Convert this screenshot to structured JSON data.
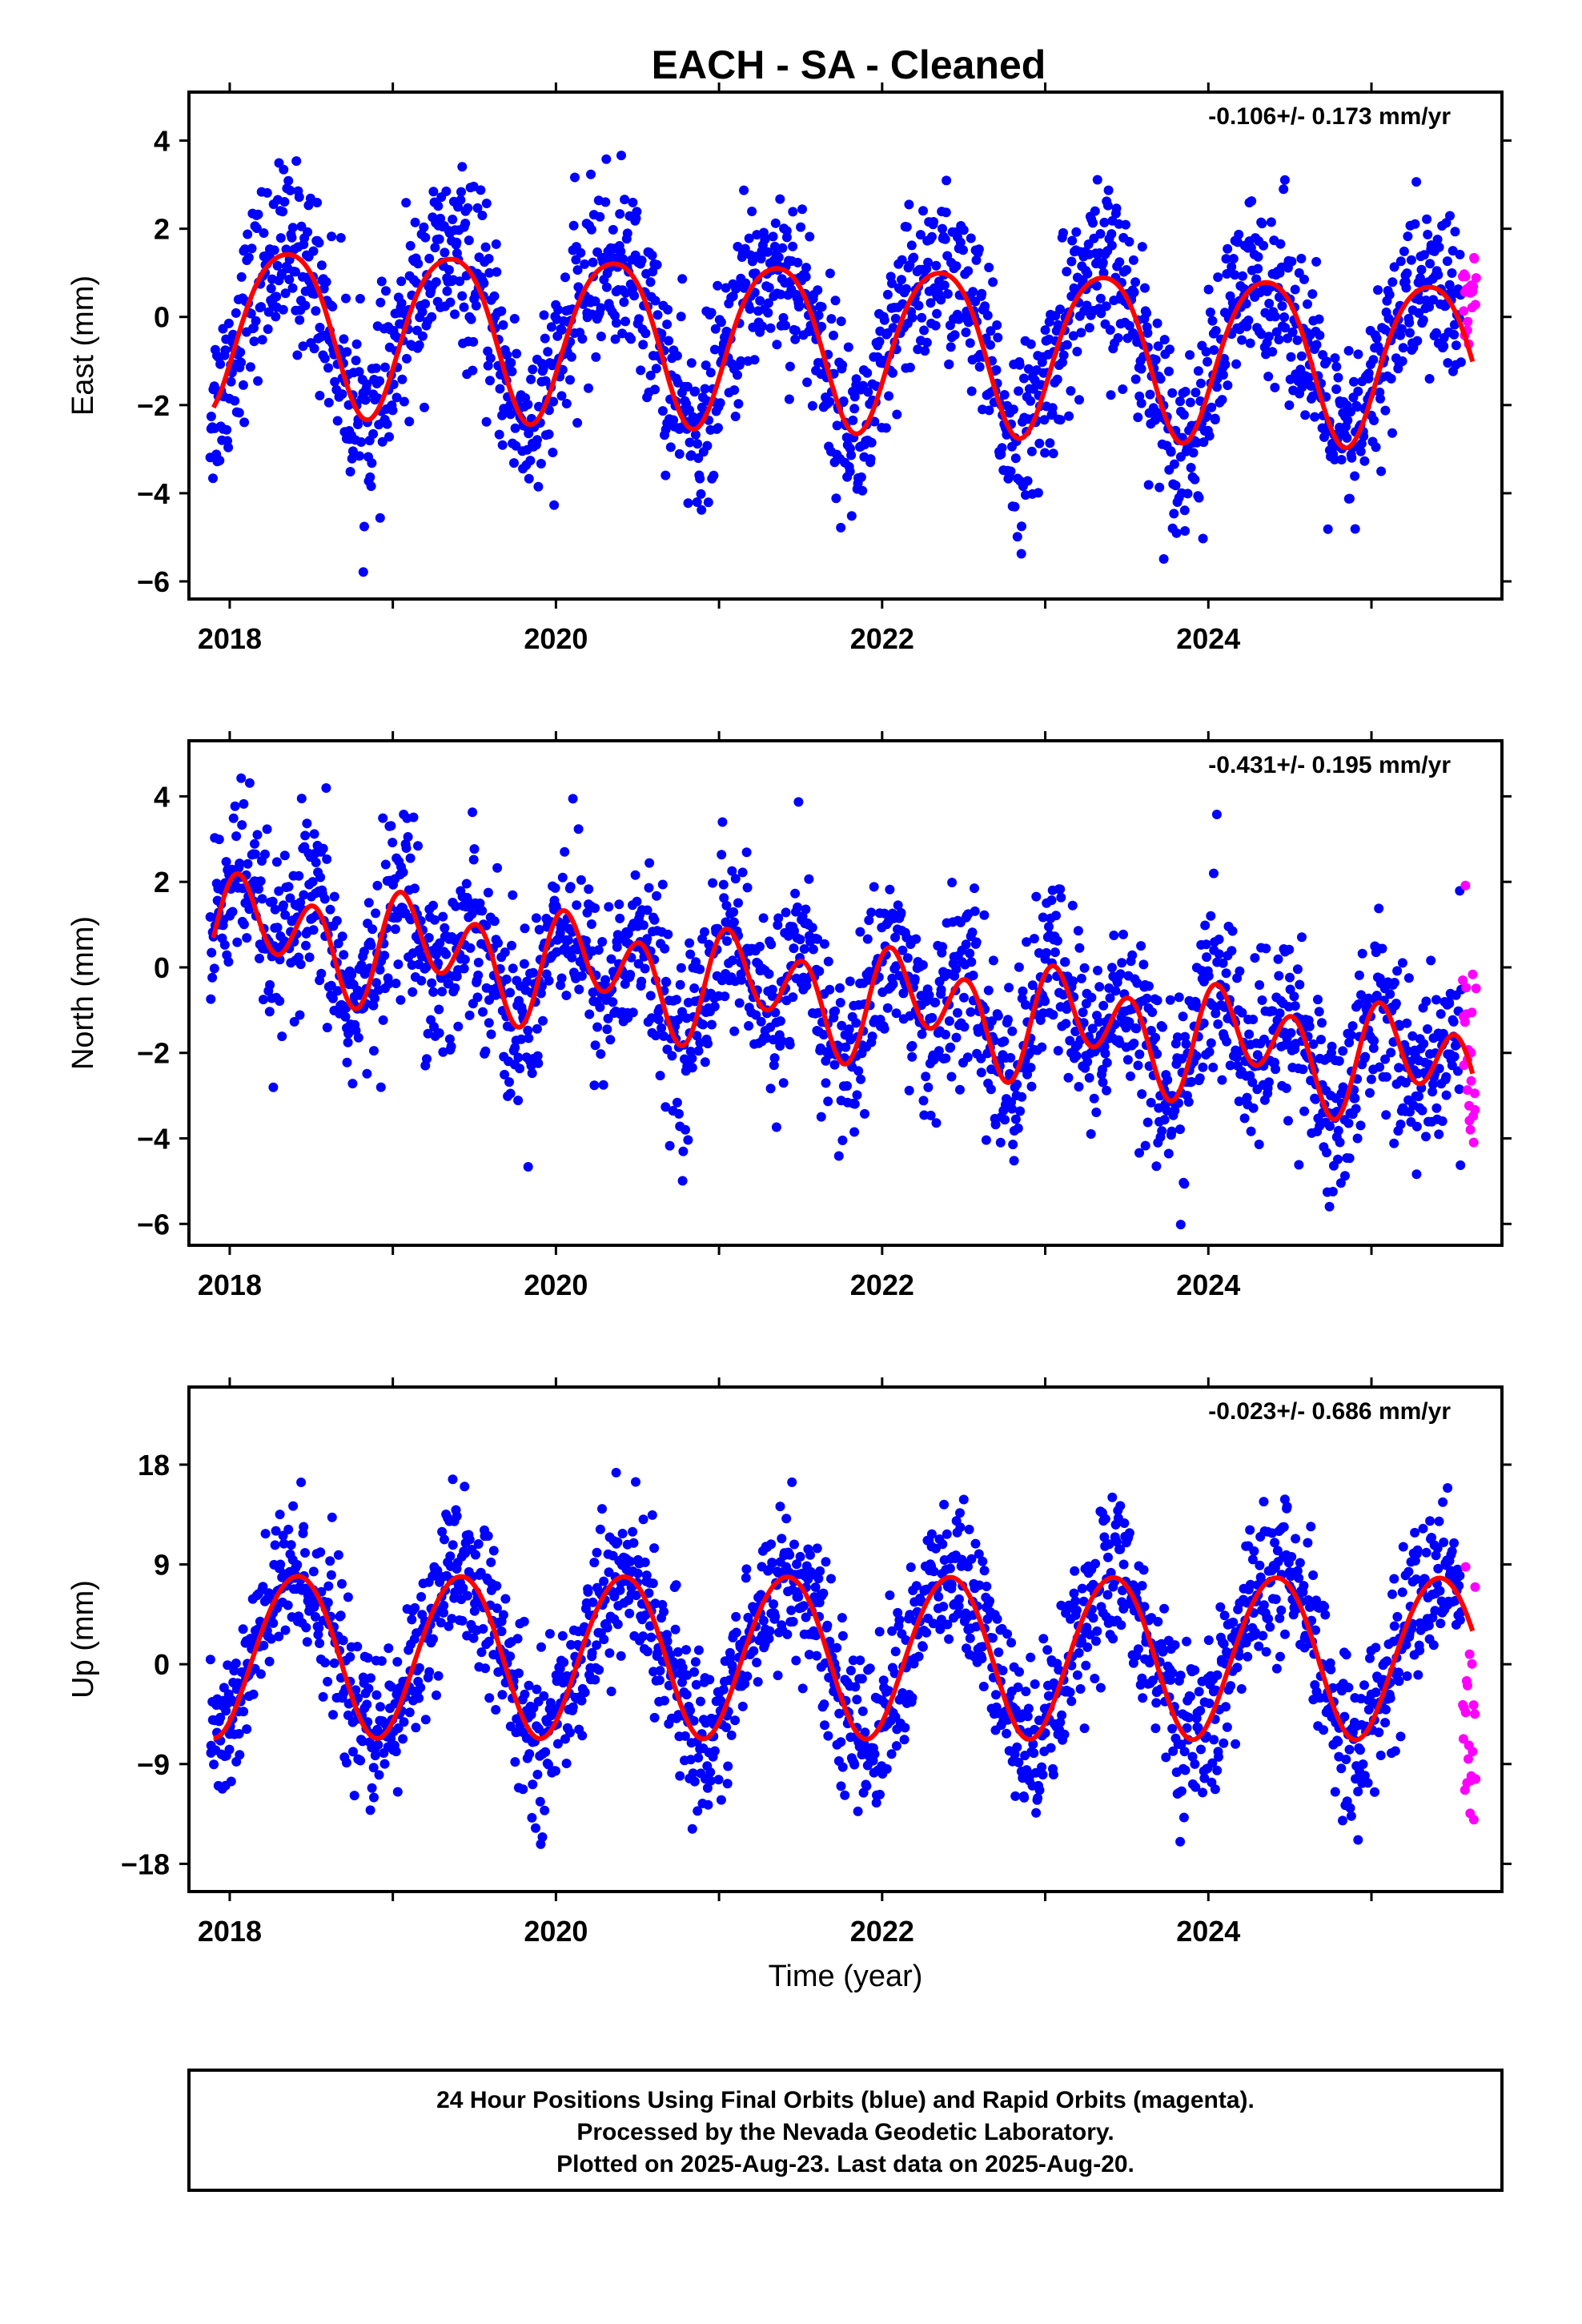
{
  "title": "EACH  - SA - Cleaned",
  "footer": {
    "line1": "24 Hour Positions Using Final Orbits (blue) and Rapid Orbits (magenta).",
    "line2": "Processed by the Nevada Geodetic Laboratory.",
    "line3": "Plotted on 2025-Aug-23. Last data on 2025-Aug-20."
  },
  "colors": {
    "final": "#0000ff",
    "rapid": "#ff00ff",
    "model": "#ff0000",
    "frame": "#000000"
  },
  "chart_data": [
    {
      "type": "scatter",
      "ylabel": "East (mm)",
      "xlabel": "",
      "rate": "-0.106+/- 0.173 mm/yr",
      "xlim": [
        2017.75,
        2025.8
      ],
      "ylim": [
        -6.4,
        5.1
      ],
      "xticks": [
        2018,
        2020,
        2022,
        2024
      ],
      "yticks": [
        4,
        2,
        0,
        -2,
        -4,
        -6
      ],
      "grid": false,
      "series": [
        {
          "name": "Final Orbits",
          "color": "#0000ff",
          "data_start": 2017.88,
          "data_end": 2025.55,
          "count": 1900,
          "offset": -0.15,
          "trend": -0.106,
          "annual_amp": 1.85,
          "annual_phase": -0.6,
          "semi_amp": 0.25,
          "semi_phase": 0.5,
          "scatter": 1.0
        },
        {
          "name": "Rapid Orbits",
          "color": "#ff00ff",
          "data_start": 2025.56,
          "data_end": 2025.64,
          "count": 22,
          "offset": 0.45,
          "trend": 0,
          "annual_amp": 0,
          "annual_phase": 0,
          "semi_amp": 0,
          "semi_phase": 0,
          "scatter": 0.6
        }
      ],
      "model": {
        "color": "#ff0000",
        "x_start": 2017.9,
        "x_end": 2025.62,
        "offset": -0.15,
        "trend": -0.106,
        "annual_amp": 1.85,
        "annual_phase": -0.6,
        "semi_amp": 0.25,
        "semi_phase": 0.5
      }
    },
    {
      "type": "scatter",
      "ylabel": "North (mm)",
      "xlabel": "",
      "rate": "-0.431+/- 0.195 mm/yr",
      "xlim": [
        2017.75,
        2025.8
      ],
      "ylim": [
        -6.5,
        5.3
      ],
      "xticks": [
        2018,
        2020,
        2022,
        2024
      ],
      "yticks": [
        4,
        2,
        0,
        -2,
        -4,
        -6
      ],
      "grid": false,
      "series": [
        {
          "name": "Final Orbits",
          "color": "#0000ff",
          "data_start": 2017.88,
          "data_end": 2025.55,
          "count": 1900,
          "offset": 0.9,
          "trend": -0.431,
          "annual_amp": 0.6,
          "annual_phase": 0.3,
          "semi_amp": 1.0,
          "semi_phase": 1.2,
          "scatter": 1.05
        },
        {
          "name": "Rapid Orbits",
          "color": "#ff00ff",
          "data_start": 2025.56,
          "data_end": 2025.64,
          "count": 22,
          "offset": -1.7,
          "trend": 0,
          "annual_amp": 0,
          "annual_phase": 0,
          "semi_amp": 0,
          "semi_phase": 0,
          "scatter": 1.6
        }
      ],
      "model": {
        "color": "#ff0000",
        "x_start": 2017.9,
        "x_end": 2025.62,
        "offset": 0.9,
        "trend": -0.431,
        "annual_amp": 0.6,
        "annual_phase": 0.3,
        "semi_amp": 1.0,
        "semi_phase": 1.2
      }
    },
    {
      "type": "scatter",
      "ylabel": "Up (mm)",
      "xlabel": "Time (year)",
      "rate": "-0.023+/- 0.686 mm/yr",
      "xlim": [
        2017.75,
        2025.8
      ],
      "ylim": [
        -20.5,
        25
      ],
      "xticks": [
        2018,
        2020,
        2022,
        2024
      ],
      "yticks": [
        18,
        9,
        0,
        -9,
        -18
      ],
      "grid": false,
      "series": [
        {
          "name": "Final Orbits",
          "color": "#0000ff",
          "data_start": 2017.88,
          "data_end": 2025.55,
          "count": 1900,
          "offset": 1.0,
          "trend": -0.023,
          "annual_amp": 7.3,
          "annual_phase": -1.0,
          "semi_amp": 0.4,
          "semi_phase": 0.0,
          "scatter": 3.5
        },
        {
          "name": "Rapid Orbits",
          "color": "#ff00ff",
          "data_start": 2025.56,
          "data_end": 2025.64,
          "count": 22,
          "offset": -5.0,
          "trend": 0,
          "annual_amp": 0,
          "annual_phase": 0,
          "semi_amp": 0,
          "semi_phase": 0,
          "scatter": 5.5
        }
      ],
      "model": {
        "color": "#ff0000",
        "x_start": 2017.9,
        "x_end": 2025.62,
        "offset": 1.0,
        "trend": -0.023,
        "annual_amp": 7.3,
        "annual_phase": -1.0,
        "semi_amp": 0.4,
        "semi_phase": 0.0
      }
    }
  ]
}
